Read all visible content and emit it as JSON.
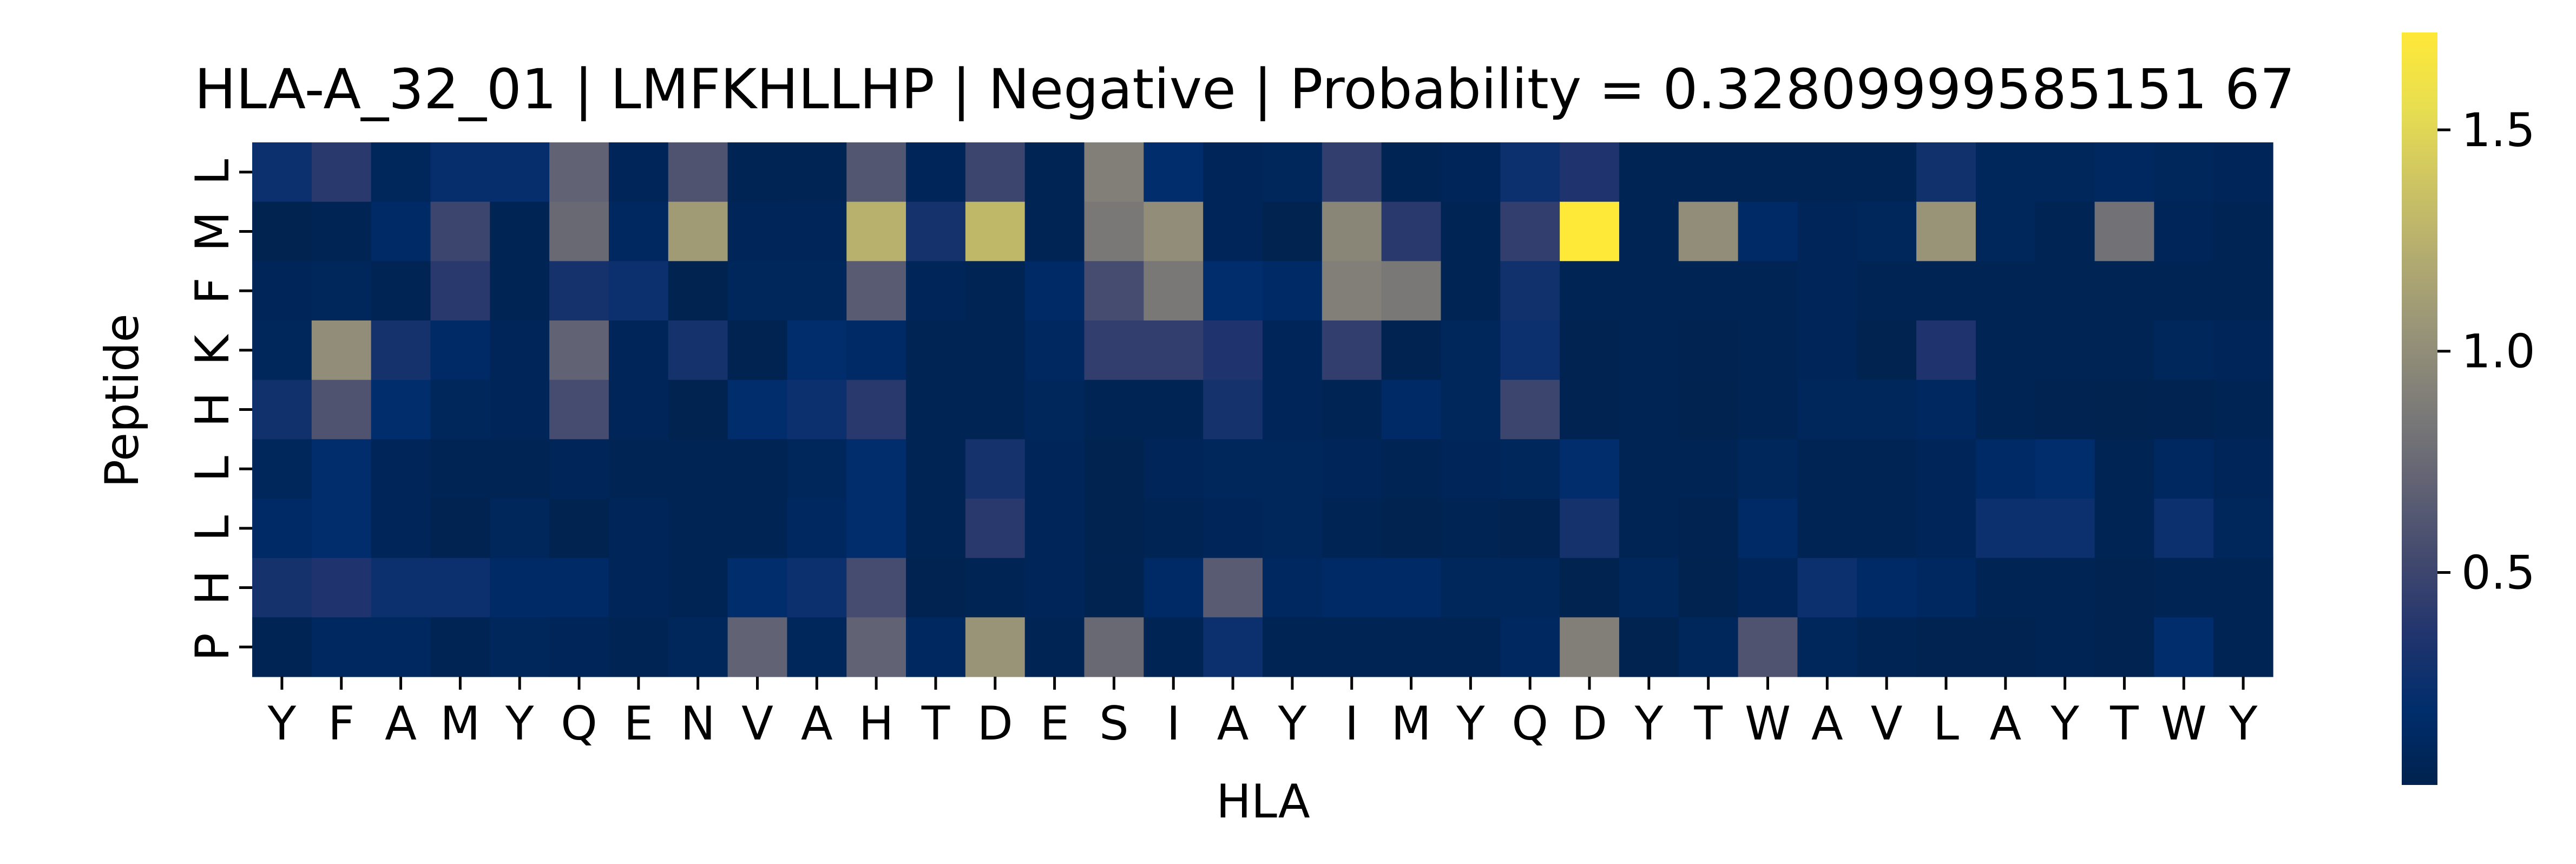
{
  "chart_data": {
    "type": "heatmap",
    "title": "HLA-A_32_01 | LMFKHLLHP | Negative | Probability = 0.32809999585151 67",
    "xlabel": "HLA",
    "ylabel": "Peptide",
    "x_categories": [
      "Y",
      "F",
      "A",
      "M",
      "Y",
      "Q",
      "E",
      "N",
      "V",
      "A",
      "H",
      "T",
      "D",
      "E",
      "S",
      "I",
      "A",
      "Y",
      "I",
      "M",
      "Y",
      "Q",
      "D",
      "Y",
      "T",
      "W",
      "A",
      "V",
      "L",
      "A",
      "Y",
      "T",
      "W",
      "Y"
    ],
    "y_categories": [
      "L",
      "M",
      "F",
      "K",
      "H",
      "L",
      "L",
      "H",
      "P"
    ],
    "colormap": "cividis",
    "colorbar": {
      "range": [
        0.02,
        1.72
      ],
      "ticks": [
        0.5,
        1.0,
        1.5
      ],
      "tick_labels": [
        "0.5",
        "1.0",
        "1.5"
      ]
    },
    "values": [
      [
        0.25,
        0.4,
        0.1,
        0.22,
        0.22,
        0.7,
        0.08,
        0.6,
        0.05,
        0.06,
        0.62,
        0.08,
        0.5,
        0.05,
        0.9,
        0.2,
        0.08,
        0.1,
        0.45,
        0.05,
        0.08,
        0.25,
        0.35,
        0.05,
        0.05,
        0.05,
        0.05,
        0.06,
        0.28,
        0.1,
        0.1,
        0.12,
        0.1,
        0.08
      ],
      [
        0.03,
        0.05,
        0.15,
        0.5,
        0.06,
        0.75,
        0.12,
        1.1,
        0.08,
        0.08,
        1.25,
        0.3,
        1.3,
        0.05,
        0.85,
        1.0,
        0.08,
        0.03,
        0.95,
        0.4,
        0.05,
        0.45,
        1.72,
        0.05,
        1.0,
        0.15,
        0.08,
        0.1,
        1.05,
        0.1,
        0.05,
        0.8,
        0.08,
        0.05
      ],
      [
        0.08,
        0.1,
        0.06,
        0.4,
        0.06,
        0.3,
        0.25,
        0.03,
        0.1,
        0.1,
        0.65,
        0.08,
        0.05,
        0.15,
        0.55,
        0.85,
        0.2,
        0.15,
        0.9,
        0.85,
        0.06,
        0.28,
        0.06,
        0.06,
        0.06,
        0.06,
        0.08,
        0.06,
        0.06,
        0.06,
        0.06,
        0.06,
        0.06,
        0.06
      ],
      [
        0.1,
        1.0,
        0.3,
        0.15,
        0.08,
        0.7,
        0.08,
        0.3,
        0.04,
        0.2,
        0.15,
        0.05,
        0.05,
        0.12,
        0.45,
        0.45,
        0.35,
        0.08,
        0.45,
        0.04,
        0.1,
        0.25,
        0.04,
        0.05,
        0.04,
        0.06,
        0.08,
        0.03,
        0.35,
        0.06,
        0.05,
        0.05,
        0.1,
        0.08
      ],
      [
        0.28,
        0.6,
        0.2,
        0.1,
        0.08,
        0.55,
        0.08,
        0.03,
        0.2,
        0.25,
        0.4,
        0.06,
        0.06,
        0.1,
        0.05,
        0.06,
        0.3,
        0.08,
        0.05,
        0.15,
        0.1,
        0.5,
        0.04,
        0.05,
        0.03,
        0.05,
        0.1,
        0.1,
        0.12,
        0.05,
        0.04,
        0.03,
        0.04,
        0.05
      ],
      [
        0.1,
        0.2,
        0.08,
        0.06,
        0.06,
        0.08,
        0.06,
        0.06,
        0.06,
        0.1,
        0.2,
        0.06,
        0.3,
        0.08,
        0.03,
        0.08,
        0.1,
        0.1,
        0.08,
        0.05,
        0.08,
        0.1,
        0.2,
        0.06,
        0.05,
        0.1,
        0.06,
        0.06,
        0.08,
        0.15,
        0.2,
        0.06,
        0.12,
        0.08
      ],
      [
        0.15,
        0.2,
        0.08,
        0.04,
        0.1,
        0.03,
        0.08,
        0.05,
        0.06,
        0.12,
        0.2,
        0.06,
        0.4,
        0.08,
        0.03,
        0.06,
        0.08,
        0.1,
        0.06,
        0.03,
        0.06,
        0.04,
        0.3,
        0.06,
        0.04,
        0.15,
        0.06,
        0.06,
        0.08,
        0.25,
        0.25,
        0.06,
        0.25,
        0.1
      ],
      [
        0.3,
        0.35,
        0.25,
        0.25,
        0.15,
        0.15,
        0.08,
        0.06,
        0.2,
        0.25,
        0.55,
        0.04,
        0.06,
        0.08,
        0.03,
        0.15,
        0.65,
        0.12,
        0.15,
        0.15,
        0.1,
        0.1,
        0.03,
        0.1,
        0.03,
        0.08,
        0.25,
        0.15,
        0.12,
        0.06,
        0.06,
        0.04,
        0.06,
        0.06
      ],
      [
        0.05,
        0.12,
        0.12,
        0.06,
        0.1,
        0.08,
        0.06,
        0.1,
        0.7,
        0.1,
        0.7,
        0.12,
        1.05,
        0.06,
        0.75,
        0.06,
        0.25,
        0.06,
        0.05,
        0.06,
        0.06,
        0.12,
        0.9,
        0.03,
        0.1,
        0.6,
        0.1,
        0.06,
        0.04,
        0.04,
        0.05,
        0.04,
        0.2,
        0.06
      ]
    ]
  }
}
